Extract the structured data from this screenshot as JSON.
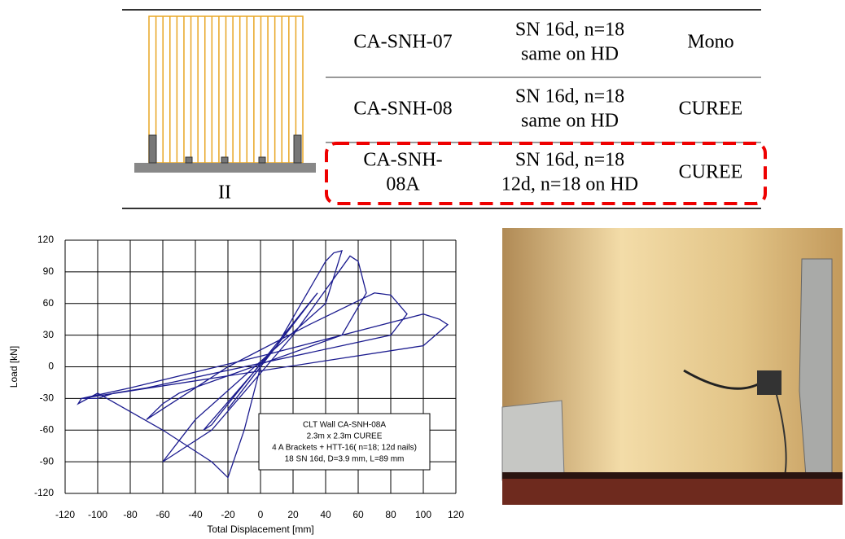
{
  "table": {
    "diagram_label": "II",
    "rows": [
      [
        "CA-SNH-07",
        [
          "SN 16d, n=18",
          "same on HD"
        ],
        "Mono"
      ],
      [
        "CA-SNH-08",
        [
          "SN 16d, n=18",
          "same on HD"
        ],
        "CUREE"
      ],
      [
        [
          "CA-SNH-",
          "08A"
        ],
        [
          "SN 16d, n=18",
          "12d, n=18 on HD"
        ],
        "CUREE"
      ]
    ]
  },
  "chart_data": {
    "type": "line",
    "x_label": "Total Displacement [mm]",
    "y_label": "Load [kN]",
    "annotation": [
      "CLT Wall CA-SNH-08A",
      "2.3m x 2.3m CUREE",
      "4 A Brackets + HTT-16( n=18; 12d nails)",
      "18 SN 16d, D=3.9 mm, L=89 mm"
    ],
    "x": [
      0,
      5,
      10,
      -5,
      -10,
      0,
      15,
      20,
      -15,
      -20,
      5,
      25,
      30,
      35,
      -25,
      -30,
      -35,
      10,
      40,
      45,
      50,
      40,
      -40,
      -50,
      -60,
      -30,
      20,
      55,
      60,
      65,
      50,
      -50,
      -60,
      -70,
      -60,
      -20,
      30,
      70,
      80,
      90,
      80,
      -70,
      -90,
      -100,
      -110,
      -80,
      0,
      50,
      100,
      110,
      115,
      100,
      -110,
      -112,
      -100,
      -60,
      -30,
      -20,
      -10,
      0
    ],
    "series": [
      {
        "color": "#1c1c8f",
        "values": [
          0,
          10,
          20,
          -10,
          -20,
          0,
          30,
          40,
          -30,
          -40,
          10,
          50,
          60,
          70,
          -45,
          -55,
          -60,
          20,
          100,
          108,
          110,
          60,
          -50,
          -70,
          -90,
          -60,
          30,
          105,
          100,
          70,
          30,
          -25,
          -35,
          -50,
          -40,
          0,
          40,
          70,
          68,
          50,
          30,
          -20,
          -25,
          -30,
          -30,
          -20,
          10,
          30,
          50,
          45,
          40,
          20,
          -30,
          -35,
          -25,
          -60,
          -90,
          -105,
          -60,
          0
        ]
      }
    ],
    "xlim": [
      -120,
      120
    ],
    "ylim": [
      -120,
      120
    ],
    "xticks": [
      -120,
      -100,
      -80,
      -60,
      -40,
      -20,
      0,
      20,
      40,
      60,
      80,
      100,
      120
    ],
    "yticks": [
      -120,
      -90,
      -60,
      -30,
      0,
      30,
      60,
      90,
      120
    ],
    "grid": true
  }
}
